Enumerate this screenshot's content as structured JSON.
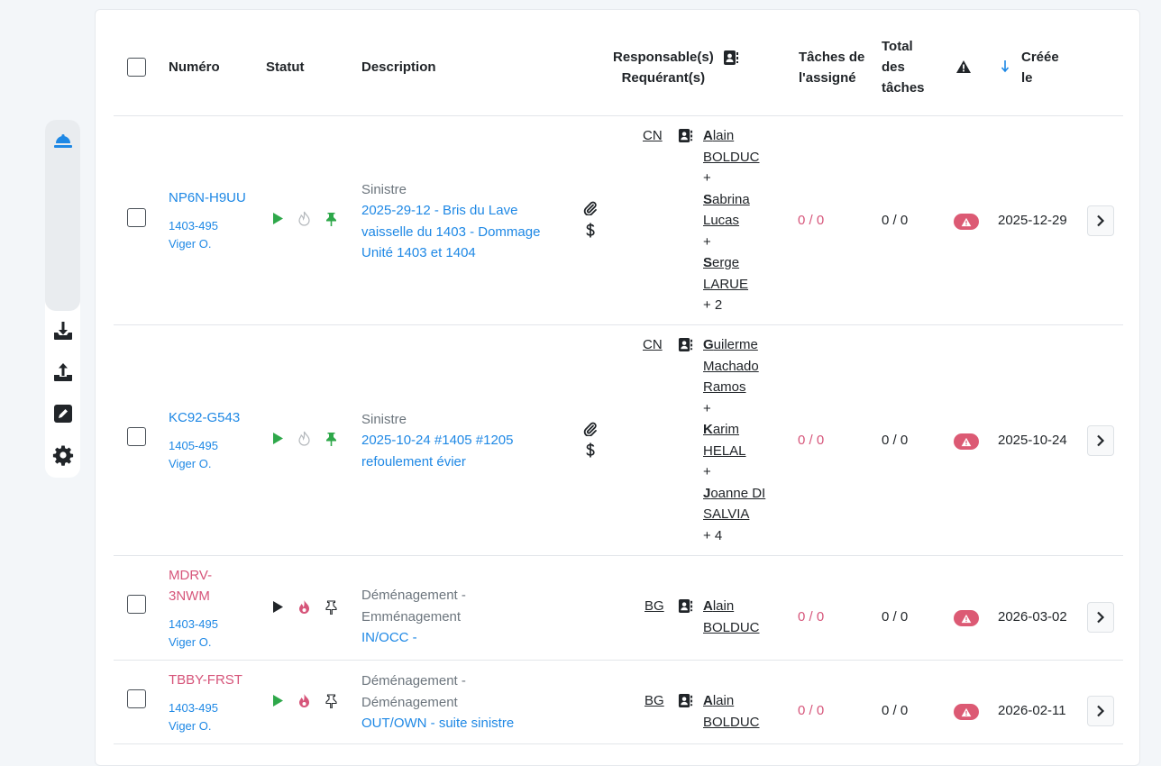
{
  "colors": {
    "accent": "#1e88e5",
    "danger": "#d6557a",
    "badge": "#dc5a74",
    "play_green": "#2ea84a"
  },
  "sidebar": {
    "items": [
      {
        "icon": "bell-icon"
      },
      {
        "icon": "download-icon"
      },
      {
        "icon": "upload-icon"
      },
      {
        "icon": "edit-icon"
      },
      {
        "icon": "gear-icon"
      }
    ]
  },
  "table": {
    "headers": {
      "numero": "Numéro",
      "statut": "Statut",
      "description": "Description",
      "responsables": "Responsable(s)",
      "requerants": "Requérant(s)",
      "taches_assigne_1": "Tâches de",
      "taches_assigne_2": "l'assigné",
      "total_1": "Total",
      "total_2": "des",
      "total_3": "tâches",
      "creee_1": "Créée",
      "creee_2": "le"
    },
    "rows": [
      {
        "numero": "NP6N-H9UU",
        "unit": "1403-495",
        "building": "Viger O.",
        "desc_type": "Sinistre",
        "desc_link": [
          "2025-29-12 - Bris du Lave",
          "vaisselle du 1403 - Dommage",
          "Unité 1403 et 1404"
        ],
        "code": "CN",
        "people": [
          {
            "initial": "A",
            "rest": "lain",
            "line2": "BOLDUC"
          },
          {
            "initial": "S",
            "rest": "abrina",
            "line2": "Lucas"
          },
          {
            "initial": "S",
            "rest": "erge",
            "line2": "LARUE"
          }
        ],
        "more": "+ 2",
        "taches_assigne": "0 / 0",
        "total": "0 / 0",
        "created": "2025-12-29"
      },
      {
        "numero": "KC92-G543",
        "unit": "1405-495",
        "building": "Viger O.",
        "desc_type": "Sinistre",
        "desc_link": [
          "2025-10-24 #1405 #1205",
          "refoulement évier"
        ],
        "code": "CN",
        "people": [
          {
            "initial": "G",
            "rest": "uilerme",
            "line2": "Machado",
            "line3": "Ramos"
          },
          {
            "initial": "K",
            "rest": "arim",
            "line2": "HELAL"
          },
          {
            "initial": "J",
            "rest": "oanne DI",
            "line2": "SALVIA"
          }
        ],
        "more": "+ 4",
        "taches_assigne": "0 / 0",
        "total": "0 / 0",
        "created": "2025-10-24"
      },
      {
        "numero_1": "MDRV-",
        "numero_2": "3NWM",
        "unit": "1403-495",
        "building": "Viger O.",
        "desc_type_1": "Déménagement -",
        "desc_type_2": "Emménagement",
        "desc_link": [
          "IN/OCC -"
        ],
        "code": "BG",
        "people": [
          {
            "initial": "A",
            "rest": "lain",
            "line2": "BOLDUC"
          }
        ],
        "taches_assigne": "0 / 0",
        "total": "0 / 0",
        "created": "2026-03-02"
      },
      {
        "numero": "TBBY-FRST",
        "unit": "1403-495",
        "building": "Viger O.",
        "desc_type_1": "Déménagement -",
        "desc_type_2": "Déménagement",
        "desc_link": [
          "OUT/OWN - suite sinistre"
        ],
        "code": "BG",
        "people": [
          {
            "initial": "A",
            "rest": "lain",
            "line2": "BOLDUC"
          }
        ],
        "taches_assigne": "0 / 0",
        "total": "0 / 0",
        "created": "2026-02-11"
      }
    ]
  }
}
